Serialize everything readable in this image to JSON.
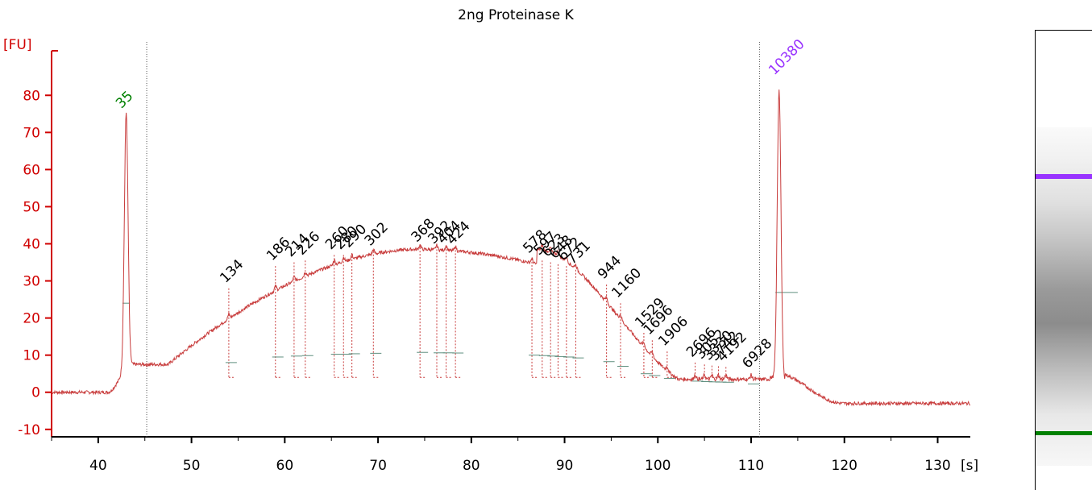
{
  "chart_data": {
    "type": "line",
    "title": "2ng Proteinase K",
    "ylabel": "[FU]",
    "xunit": "[s]",
    "xlim": [
      35,
      133.5
    ],
    "ylim": [
      -12,
      92
    ],
    "xticks": [
      40,
      50,
      60,
      70,
      80,
      90,
      100,
      110,
      120,
      130
    ],
    "yticks": [
      -10,
      0,
      10,
      20,
      30,
      40,
      50,
      60,
      70,
      80
    ],
    "grid": false,
    "marker_lines_x": [
      45.2,
      110.9
    ],
    "colors": {
      "trace": "#c83c3c",
      "axis": "#d00000",
      "lower_marker": "#008000",
      "upper_marker": "#9933ff",
      "baseline": "#5f8f7f"
    },
    "marker_peaks": [
      {
        "label": "35",
        "time": 43.0,
        "fu": 75,
        "color": "#008000"
      },
      {
        "label": "10380",
        "time": 113.0,
        "fu": 84,
        "color": "#9933ff"
      }
    ],
    "peaks": [
      {
        "label": "134",
        "time": 54.0,
        "fu": 28
      },
      {
        "label": "186",
        "time": 59.0,
        "fu": 34
      },
      {
        "label": "214",
        "time": 61.0,
        "fu": 35
      },
      {
        "label": "226",
        "time": 62.2,
        "fu": 35.5
      },
      {
        "label": "260",
        "time": 65.3,
        "fu": 37
      },
      {
        "label": "280",
        "time": 66.3,
        "fu": 37
      },
      {
        "label": "290",
        "time": 67.2,
        "fu": 37.5
      },
      {
        "label": "302",
        "time": 69.5,
        "fu": 38
      },
      {
        "label": "368",
        "time": 74.5,
        "fu": 39
      },
      {
        "label": "392",
        "time": 76.3,
        "fu": 38.5
      },
      {
        "label": "404",
        "time": 77.3,
        "fu": 38.5
      },
      {
        "label": "424",
        "time": 78.3,
        "fu": 38.3
      },
      {
        "label": "578",
        "time": 86.5,
        "fu": 36
      },
      {
        "label": "597",
        "time": 87.6,
        "fu": 35.5
      },
      {
        "label": "623",
        "time": 88.5,
        "fu": 35
      },
      {
        "label": "648",
        "time": 89.3,
        "fu": 34.5
      },
      {
        "label": "672",
        "time": 90.2,
        "fu": 34
      },
      {
        "label": "731",
        "time": 91.2,
        "fu": 33
      },
      {
        "label": "944",
        "time": 94.5,
        "fu": 29
      },
      {
        "label": "1160",
        "time": 96.0,
        "fu": 24
      },
      {
        "label": "1529",
        "time": 98.5,
        "fu": 16
      },
      {
        "label": "1696",
        "time": 99.4,
        "fu": 14
      },
      {
        "label": "1906",
        "time": 101.0,
        "fu": 11
      },
      {
        "label": "2696",
        "time": 104.0,
        "fu": 8
      },
      {
        "label": "3052",
        "time": 105.0,
        "fu": 7.5
      },
      {
        "label": "3330",
        "time": 105.8,
        "fu": 7.2
      },
      {
        "label": "3742",
        "time": 106.5,
        "fu": 7
      },
      {
        "label": "4192",
        "time": 107.3,
        "fu": 6.8
      },
      {
        "label": "6928",
        "time": 110.0,
        "fu": 5
      }
    ]
  }
}
